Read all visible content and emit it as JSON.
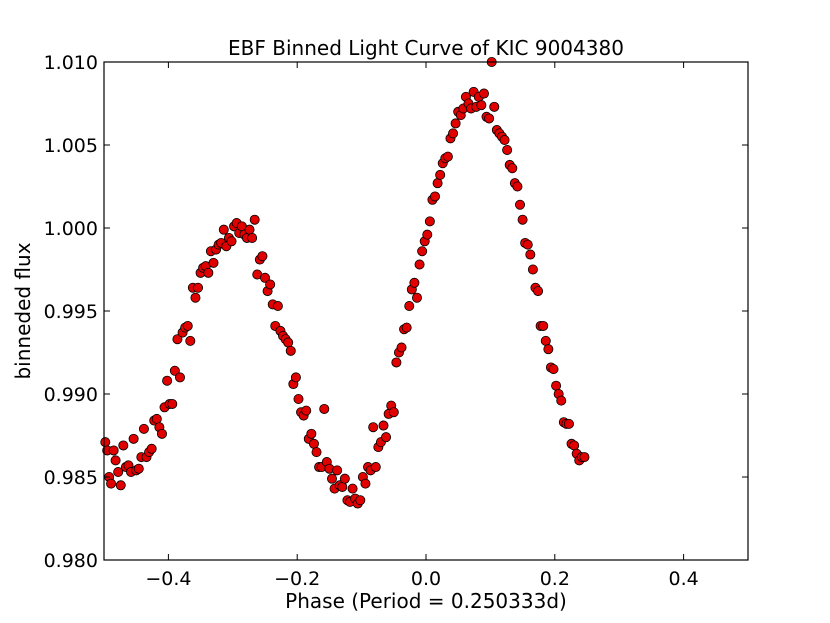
{
  "chart_data": {
    "type": "scatter",
    "title": "EBF Binned Light Curve of KIC 9004380",
    "xlabel": "Phase (Period = 0.250333d)",
    "ylabel": "binneded flux",
    "xlim": [
      -0.5,
      0.5
    ],
    "ylim": [
      0.98,
      1.01
    ],
    "x_ticks": [
      -0.4,
      -0.2,
      0.0,
      0.2,
      0.4
    ],
    "x_tick_labels": [
      "−0.4",
      "−0.2",
      "0.0",
      "0.2",
      "0.4"
    ],
    "y_ticks": [
      0.98,
      0.985,
      0.99,
      0.995,
      1.0,
      1.005,
      1.01
    ],
    "y_tick_labels": [
      "0.980",
      "0.985",
      "0.990",
      "0.995",
      "1.000",
      "1.005",
      "1.010"
    ],
    "marker_color": "#e00000",
    "marker_edge_color": "#000000",
    "series": [
      {
        "name": "binned flux",
        "points": [
          [
            -0.498,
            0.9871
          ],
          [
            -0.495,
            0.9866
          ],
          [
            -0.492,
            0.985
          ],
          [
            -0.489,
            0.9846
          ],
          [
            -0.485,
            0.9866
          ],
          [
            -0.482,
            0.986
          ],
          [
            -0.478,
            0.9853
          ],
          [
            -0.474,
            0.9845
          ],
          [
            -0.47,
            0.9869
          ],
          [
            -0.466,
            0.9856
          ],
          [
            -0.462,
            0.9857
          ],
          [
            -0.458,
            0.9853
          ],
          [
            -0.454,
            0.9873
          ],
          [
            -0.45,
            0.9854
          ],
          [
            -0.446,
            0.9855
          ],
          [
            -0.442,
            0.9862
          ],
          [
            -0.438,
            0.9879
          ],
          [
            -0.434,
            0.9862
          ],
          [
            -0.43,
            0.9865
          ],
          [
            -0.426,
            0.9867
          ],
          [
            -0.422,
            0.9884
          ],
          [
            -0.418,
            0.9885
          ],
          [
            -0.414,
            0.988
          ],
          [
            -0.41,
            0.9876
          ],
          [
            -0.406,
            0.9892
          ],
          [
            -0.402,
            0.9908
          ],
          [
            -0.398,
            0.9894
          ],
          [
            -0.394,
            0.9894
          ],
          [
            -0.39,
            0.9914
          ],
          [
            -0.386,
            0.9933
          ],
          [
            -0.382,
            0.991
          ],
          [
            -0.378,
            0.9937
          ],
          [
            -0.374,
            0.994
          ],
          [
            -0.37,
            0.9941
          ],
          [
            -0.366,
            0.9932
          ],
          [
            -0.362,
            0.9964
          ],
          [
            -0.358,
            0.9958
          ],
          [
            -0.354,
            0.9964
          ],
          [
            -0.35,
            0.9973
          ],
          [
            -0.346,
            0.9976
          ],
          [
            -0.342,
            0.9977
          ],
          [
            -0.338,
            0.9973
          ],
          [
            -0.334,
            0.9986
          ],
          [
            -0.33,
            0.9979
          ],
          [
            -0.326,
            0.9987
          ],
          [
            -0.322,
            0.999
          ],
          [
            -0.318,
            0.9991
          ],
          [
            -0.314,
            0.9999
          ],
          [
            -0.31,
            0.9989
          ],
          [
            -0.306,
            0.9994
          ],
          [
            -0.302,
            0.9992
          ],
          [
            -0.298,
            1.0001
          ],
          [
            -0.294,
            1.0003
          ],
          [
            -0.29,
            0.9997
          ],
          [
            -0.286,
            1.0001
          ],
          [
            -0.282,
            0.9996
          ],
          [
            -0.278,
            0.9994
          ],
          [
            -0.274,
            0.9999
          ],
          [
            -0.27,
            0.9994
          ],
          [
            -0.266,
            1.0005
          ],
          [
            -0.262,
            0.9972
          ],
          [
            -0.258,
            0.9981
          ],
          [
            -0.254,
            0.9983
          ],
          [
            -0.25,
            0.997
          ],
          [
            -0.246,
            0.9962
          ],
          [
            -0.242,
            0.9966
          ],
          [
            -0.238,
            0.9954
          ],
          [
            -0.234,
            0.9941
          ],
          [
            -0.23,
            0.9953
          ],
          [
            -0.226,
            0.9938
          ],
          [
            -0.222,
            0.9935
          ],
          [
            -0.218,
            0.9933
          ],
          [
            -0.214,
            0.9931
          ],
          [
            -0.21,
            0.9926
          ],
          [
            -0.206,
            0.9906
          ],
          [
            -0.202,
            0.991
          ],
          [
            -0.198,
            0.9897
          ],
          [
            -0.194,
            0.9889
          ],
          [
            -0.19,
            0.9887
          ],
          [
            -0.186,
            0.989
          ],
          [
            -0.182,
            0.9873
          ],
          [
            -0.178,
            0.9876
          ],
          [
            -0.174,
            0.987
          ],
          [
            -0.17,
            0.9865
          ],
          [
            -0.166,
            0.9856
          ],
          [
            -0.162,
            0.9856
          ],
          [
            -0.158,
            0.9891
          ],
          [
            -0.154,
            0.9859
          ],
          [
            -0.15,
            0.9855
          ],
          [
            -0.146,
            0.9849
          ],
          [
            -0.142,
            0.9843
          ],
          [
            -0.138,
            0.9854
          ],
          [
            -0.134,
            0.9845
          ],
          [
            -0.13,
            0.9844
          ],
          [
            -0.126,
            0.9849
          ],
          [
            -0.122,
            0.9836
          ],
          [
            -0.118,
            0.9835
          ],
          [
            -0.114,
            0.9843
          ],
          [
            -0.11,
            0.9837
          ],
          [
            -0.106,
            0.9834
          ],
          [
            -0.102,
            0.9836
          ],
          [
            -0.098,
            0.985
          ],
          [
            -0.094,
            0.9846
          ],
          [
            -0.09,
            0.9856
          ],
          [
            -0.086,
            0.9854
          ],
          [
            -0.082,
            0.988
          ],
          [
            -0.078,
            0.9856
          ],
          [
            -0.074,
            0.9868
          ],
          [
            -0.07,
            0.9871
          ],
          [
            -0.066,
            0.9881
          ],
          [
            -0.062,
            0.9874
          ],
          [
            -0.058,
            0.9888
          ],
          [
            -0.054,
            0.9893
          ],
          [
            -0.05,
            0.9889
          ],
          [
            -0.046,
            0.9919
          ],
          [
            -0.042,
            0.9925
          ],
          [
            -0.038,
            0.9928
          ],
          [
            -0.034,
            0.9939
          ],
          [
            -0.03,
            0.994
          ],
          [
            -0.026,
            0.9953
          ],
          [
            -0.022,
            0.9963
          ],
          [
            -0.018,
            0.9967
          ],
          [
            -0.014,
            0.9958
          ],
          [
            -0.01,
            0.9978
          ],
          [
            -0.006,
            0.9986
          ],
          [
            -0.002,
            0.9992
          ],
          [
            0.002,
            0.9996
          ],
          [
            0.006,
            1.0004
          ],
          [
            0.01,
            1.0017
          ],
          [
            0.014,
            1.0019
          ],
          [
            0.018,
            1.0027
          ],
          [
            0.022,
            1.0032
          ],
          [
            0.026,
            1.0039
          ],
          [
            0.03,
            1.0042
          ],
          [
            0.034,
            1.0043
          ],
          [
            0.038,
            1.0054
          ],
          [
            0.042,
            1.0057
          ],
          [
            0.046,
            1.0063
          ],
          [
            0.05,
            1.007
          ],
          [
            0.054,
            1.0068
          ],
          [
            0.058,
            1.0072
          ],
          [
            0.062,
            1.0079
          ],
          [
            0.066,
            1.0075
          ],
          [
            0.07,
            1.0072
          ],
          [
            0.074,
            1.0082
          ],
          [
            0.078,
            1.0073
          ],
          [
            0.082,
            1.0079
          ],
          [
            0.086,
            1.0074
          ],
          [
            0.09,
            1.0081
          ],
          [
            0.094,
            1.0067
          ],
          [
            0.098,
            1.0066
          ],
          [
            0.102,
            1.01
          ],
          [
            0.106,
            1.0073
          ],
          [
            0.11,
            1.0059
          ],
          [
            0.114,
            1.0057
          ],
          [
            0.118,
            1.0055
          ],
          [
            0.122,
            1.0053
          ],
          [
            0.126,
            1.0047
          ],
          [
            0.13,
            1.0038
          ],
          [
            0.134,
            1.0036
          ],
          [
            0.138,
            1.0027
          ],
          [
            0.142,
            1.0025
          ],
          [
            0.146,
            1.0014
          ],
          [
            0.15,
            1.0005
          ],
          [
            0.154,
            0.9991
          ],
          [
            0.158,
            0.999
          ],
          [
            0.162,
            0.9984
          ],
          [
            0.166,
            0.9975
          ],
          [
            0.17,
            0.9964
          ],
          [
            0.174,
            0.9962
          ],
          [
            0.178,
            0.9941
          ],
          [
            0.182,
            0.9941
          ],
          [
            0.186,
            0.9932
          ],
          [
            0.19,
            0.9927
          ],
          [
            0.194,
            0.9916
          ],
          [
            0.198,
            0.9915
          ],
          [
            0.202,
            0.9905
          ],
          [
            0.206,
            0.99
          ],
          [
            0.21,
            0.9896
          ],
          [
            0.214,
            0.9883
          ],
          [
            0.218,
            0.9882
          ],
          [
            0.222,
            0.9882
          ],
          [
            0.226,
            0.987
          ],
          [
            0.23,
            0.9869
          ],
          [
            0.234,
            0.9864
          ],
          [
            0.238,
            0.986
          ],
          [
            0.242,
            0.9862
          ],
          [
            0.246,
            0.9862
          ]
        ]
      }
    ]
  }
}
